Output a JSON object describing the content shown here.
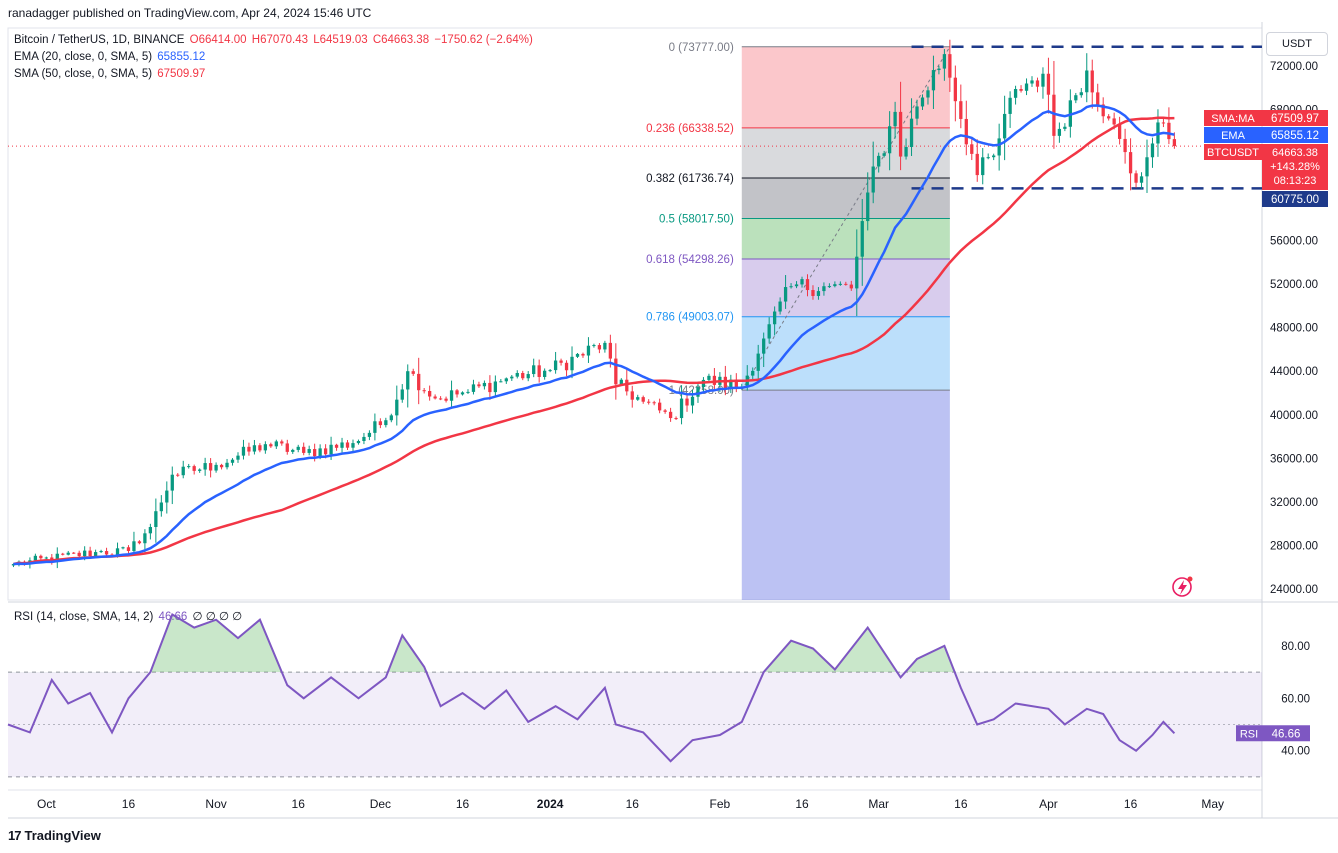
{
  "header": {
    "publisher_line": "ranadagger published on TradingView.com, Apr 24, 2024 15:46 UTC"
  },
  "legend": {
    "symbol": "Bitcoin / TetherUS, 1D, BINANCE",
    "ohlc": {
      "open": "O66414.00",
      "high": "H67070.43",
      "low": "L64519.03",
      "close": "C64663.38",
      "change": "−1750.62 (−2.64%)"
    },
    "ema_label": "EMA (20, close, 0, SMA, 5)",
    "ema_value": "65855.12",
    "sma_label": "SMA (50, close, 0, SMA, 5)",
    "sma_value": "67509.97",
    "rsi_label": "RSI (14, close, SMA, 14, 2)",
    "rsi_value": "46.66",
    "rsi_extra": "∅ ∅ ∅ ∅"
  },
  "currency_button": "USDT",
  "colors": {
    "up": "#089981",
    "down": "#f23645",
    "ema": "#2962ff",
    "sma": "#f23645",
    "rsi": "#7e57c2",
    "level": "#1e3a8a",
    "text": "#131722"
  },
  "footer": {
    "brand": "TradingView",
    "logo_icon": "tradingview-logo-icon"
  },
  "alert_icon": "lightning-alert-icon",
  "chart_data": [
    {
      "type": "candlestick",
      "title": "Bitcoin / TetherUS, 1D, BINANCE",
      "y_axis_ticks": [
        24000,
        28000,
        32000,
        36000,
        40000,
        44000,
        48000,
        52000,
        56000,
        60000,
        64000,
        68000,
        72000
      ],
      "ylim": [
        23000,
        75500
      ],
      "x_axis_ticks": [
        "Oct",
        "16",
        "Nov",
        "16",
        "Dec",
        "16",
        "2024",
        "16",
        "Feb",
        "16",
        "Mar",
        "16",
        "Apr",
        "16",
        "May"
      ],
      "x_range": [
        "2023-09-24",
        "2024-05-10"
      ],
      "anchors": [
        {
          "date": "2023-09-25",
          "price": 26300
        },
        {
          "date": "2023-10-10",
          "price": 27400
        },
        {
          "date": "2023-10-16",
          "price": 27500
        },
        {
          "date": "2023-10-20",
          "price": 29700
        },
        {
          "date": "2023-10-24",
          "price": 34500
        },
        {
          "date": "2023-11-01",
          "price": 35400
        },
        {
          "date": "2023-11-10",
          "price": 37300
        },
        {
          "date": "2023-11-17",
          "price": 36500
        },
        {
          "date": "2023-11-26",
          "price": 37400
        },
        {
          "date": "2023-12-02",
          "price": 39500
        },
        {
          "date": "2023-12-06",
          "price": 44000
        },
        {
          "date": "2023-12-11",
          "price": 41500
        },
        {
          "date": "2023-12-17",
          "price": 42100
        },
        {
          "date": "2023-12-25",
          "price": 43500
        },
        {
          "date": "2024-01-01",
          "price": 44100
        },
        {
          "date": "2024-01-11",
          "price": 46600
        },
        {
          "date": "2024-01-13",
          "price": 42800
        },
        {
          "date": "2024-01-18",
          "price": 41200
        },
        {
          "date": "2024-01-23",
          "price": 39700
        },
        {
          "date": "2024-01-29",
          "price": 43200
        },
        {
          "date": "2024-02-05",
          "price": 42600
        },
        {
          "date": "2024-02-09",
          "price": 47000
        },
        {
          "date": "2024-02-14",
          "price": 51800
        },
        {
          "date": "2024-02-20",
          "price": 51800
        },
        {
          "date": "2024-02-25",
          "price": 51600
        },
        {
          "date": "2024-02-28",
          "price": 60400
        },
        {
          "date": "2024-03-04",
          "price": 67800
        },
        {
          "date": "2024-03-05",
          "price": 63700
        },
        {
          "date": "2024-03-08",
          "price": 68300
        },
        {
          "date": "2024-03-13",
          "price": 73100
        },
        {
          "date": "2024-03-19",
          "price": 62000
        },
        {
          "date": "2024-03-22",
          "price": 63800
        },
        {
          "date": "2024-03-26",
          "price": 69900
        },
        {
          "date": "2024-03-31",
          "price": 71300
        },
        {
          "date": "2024-04-02",
          "price": 65600
        },
        {
          "date": "2024-04-08",
          "price": 71600
        },
        {
          "date": "2024-04-12",
          "price": 67200
        },
        {
          "date": "2024-04-17",
          "price": 61300
        },
        {
          "date": "2024-04-20",
          "price": 64900
        },
        {
          "date": "2024-04-22",
          "price": 66800
        },
        {
          "date": "2024-04-24",
          "price": 64663
        }
      ],
      "fibonacci_levels": [
        {
          "ratio": "0",
          "price": 73777.0,
          "label": "0 (73777.00)"
        },
        {
          "ratio": "0.236",
          "price": 66338.52,
          "label": "0.236 (66338.52)"
        },
        {
          "ratio": "0.382",
          "price": 61736.74,
          "label": "0.382 (61736.74)"
        },
        {
          "ratio": "0.5",
          "price": 58017.5,
          "label": "0.5 (58017.50)"
        },
        {
          "ratio": "0.618",
          "price": 54298.26,
          "label": "0.618 (54298.26)"
        },
        {
          "ratio": "0.786",
          "price": 49003.07,
          "label": "0.786 (49003.07)"
        },
        {
          "ratio": "1",
          "price": 42258.0,
          "label": "1 (42258.00)"
        }
      ],
      "fib_range": {
        "start_date": "2024-02-05",
        "end_date": "2024-03-14"
      },
      "horizontal_levels": [
        73777,
        60775
      ],
      "price_labels": [
        {
          "name": "SMA:MA",
          "value": "67509.97"
        },
        {
          "name": "EMA",
          "value": "65855.12"
        },
        {
          "name": "BTCUSDT",
          "value": "64663.38",
          "change": "+143.28%",
          "countdown": "08:13:23"
        },
        {
          "name": "",
          "value": "60775.00"
        }
      ]
    },
    {
      "type": "line",
      "title": "RSI (14, close, SMA, 14, 2)",
      "y_axis_ticks": [
        40,
        60,
        80
      ],
      "ylim": [
        25,
        96
      ],
      "bands": [
        30,
        70
      ],
      "midline": 50,
      "current": 46.66,
      "series": [
        {
          "points": [
            {
              "date": "2023-09-24",
              "value": 50
            },
            {
              "date": "2023-09-28",
              "value": 47
            },
            {
              "date": "2023-10-02",
              "value": 67
            },
            {
              "date": "2023-10-05",
              "value": 58
            },
            {
              "date": "2023-10-09",
              "value": 62
            },
            {
              "date": "2023-10-13",
              "value": 47
            },
            {
              "date": "2023-10-16",
              "value": 60
            },
            {
              "date": "2023-10-20",
              "value": 70
            },
            {
              "date": "2023-10-24",
              "value": 92
            },
            {
              "date": "2023-10-28",
              "value": 87
            },
            {
              "date": "2023-11-01",
              "value": 90
            },
            {
              "date": "2023-11-05",
              "value": 83
            },
            {
              "date": "2023-11-09",
              "value": 90
            },
            {
              "date": "2023-11-14",
              "value": 65
            },
            {
              "date": "2023-11-17",
              "value": 60
            },
            {
              "date": "2023-11-22",
              "value": 68
            },
            {
              "date": "2023-11-27",
              "value": 60
            },
            {
              "date": "2023-12-02",
              "value": 68
            },
            {
              "date": "2023-12-05",
              "value": 84
            },
            {
              "date": "2023-12-09",
              "value": 72
            },
            {
              "date": "2023-12-12",
              "value": 57
            },
            {
              "date": "2023-12-16",
              "value": 62
            },
            {
              "date": "2023-12-20",
              "value": 56
            },
            {
              "date": "2023-12-24",
              "value": 63
            },
            {
              "date": "2023-12-28",
              "value": 51
            },
            {
              "date": "2024-01-02",
              "value": 57
            },
            {
              "date": "2024-01-06",
              "value": 52
            },
            {
              "date": "2024-01-11",
              "value": 64
            },
            {
              "date": "2024-01-13",
              "value": 50
            },
            {
              "date": "2024-01-18",
              "value": 47
            },
            {
              "date": "2024-01-23",
              "value": 36
            },
            {
              "date": "2024-01-27",
              "value": 44
            },
            {
              "date": "2024-02-01",
              "value": 46
            },
            {
              "date": "2024-02-05",
              "value": 51
            },
            {
              "date": "2024-02-09",
              "value": 70
            },
            {
              "date": "2024-02-14",
              "value": 82
            },
            {
              "date": "2024-02-18",
              "value": 79
            },
            {
              "date": "2024-02-22",
              "value": 71
            },
            {
              "date": "2024-02-28",
              "value": 87
            },
            {
              "date": "2024-03-05",
              "value": 68
            },
            {
              "date": "2024-03-08",
              "value": 75
            },
            {
              "date": "2024-03-13",
              "value": 80
            },
            {
              "date": "2024-03-16",
              "value": 64
            },
            {
              "date": "2024-03-19",
              "value": 50
            },
            {
              "date": "2024-03-22",
              "value": 52
            },
            {
              "date": "2024-03-26",
              "value": 58
            },
            {
              "date": "2024-04-01",
              "value": 56
            },
            {
              "date": "2024-04-04",
              "value": 50
            },
            {
              "date": "2024-04-08",
              "value": 56
            },
            {
              "date": "2024-04-11",
              "value": 54
            },
            {
              "date": "2024-04-14",
              "value": 44
            },
            {
              "date": "2024-04-17",
              "value": 40
            },
            {
              "date": "2024-04-20",
              "value": 46
            },
            {
              "date": "2024-04-22",
              "value": 51
            },
            {
              "date": "2024-04-24",
              "value": 46.66
            }
          ]
        }
      ]
    }
  ]
}
